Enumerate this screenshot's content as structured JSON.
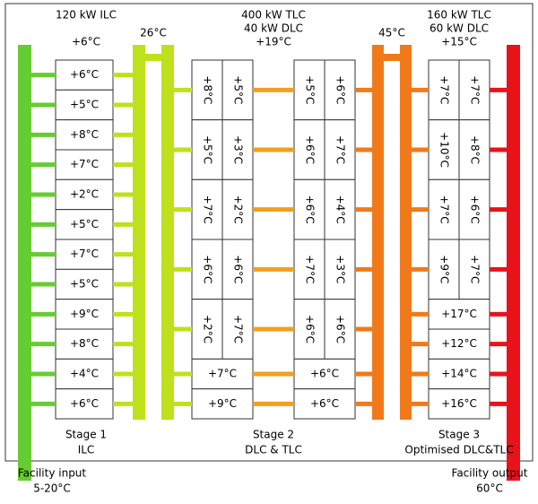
{
  "top": {
    "stage1_power": "120 kW ILC",
    "stage1_supply": "+6°C",
    "manifold1": "26°C",
    "stage2_power": [
      "400 kW TLC",
      "40 kW DLC"
    ],
    "stage2_supply": "+19°C",
    "manifold2": "45°C",
    "stage3_power": [
      "160 kW TLC",
      "60 kW DLC"
    ],
    "stage3_supply": "+15°C"
  },
  "stage1": {
    "title": "Stage 1",
    "subtitle": "ILC",
    "cells": [
      "+6°C",
      "+5°C",
      "+8°C",
      "+7°C",
      "+2°C",
      "+5°C",
      "+7°C",
      "+5°C",
      "+9°C",
      "+8°C",
      "+4°C",
      "+6°C"
    ]
  },
  "stage2": {
    "title": "Stage 2",
    "subtitle": "DLC & TLC",
    "blocks": [
      {
        "tall": [
          [
            "+8°C",
            "+5°C"
          ],
          [
            "+5°C",
            "+3°C"
          ],
          [
            "+7°C",
            "+2°C"
          ],
          [
            "+6°C",
            "+6°C"
          ],
          [
            "+2°C",
            "+7°C"
          ]
        ],
        "short": [
          "+7°C",
          "+9°C"
        ]
      },
      {
        "tall": [
          [
            "+5°C",
            "+6°C"
          ],
          [
            "+6°C",
            "+7°C"
          ],
          [
            "+6°C",
            "+4°C"
          ],
          [
            "+7°C",
            "+3°C"
          ],
          [
            "+6°C",
            "+6°C"
          ]
        ],
        "short": [
          "+6°C",
          "+6°C"
        ]
      }
    ]
  },
  "stage3": {
    "title": "Stage 3",
    "subtitle": "Optimised DLC&TLC",
    "tall": [
      [
        "+7°C",
        "+7°C"
      ],
      [
        "+10°C",
        "+8°C"
      ],
      [
        "+7°C",
        "+6°C"
      ],
      [
        "+9°C",
        "+7°C"
      ]
    ],
    "short": [
      "+17°C",
      "+12°C",
      "+14°C",
      "+16°C"
    ]
  },
  "input": {
    "label": "Facility input",
    "range": "5-20°C"
  },
  "output": {
    "label": "Facility output",
    "range": "60°C"
  }
}
